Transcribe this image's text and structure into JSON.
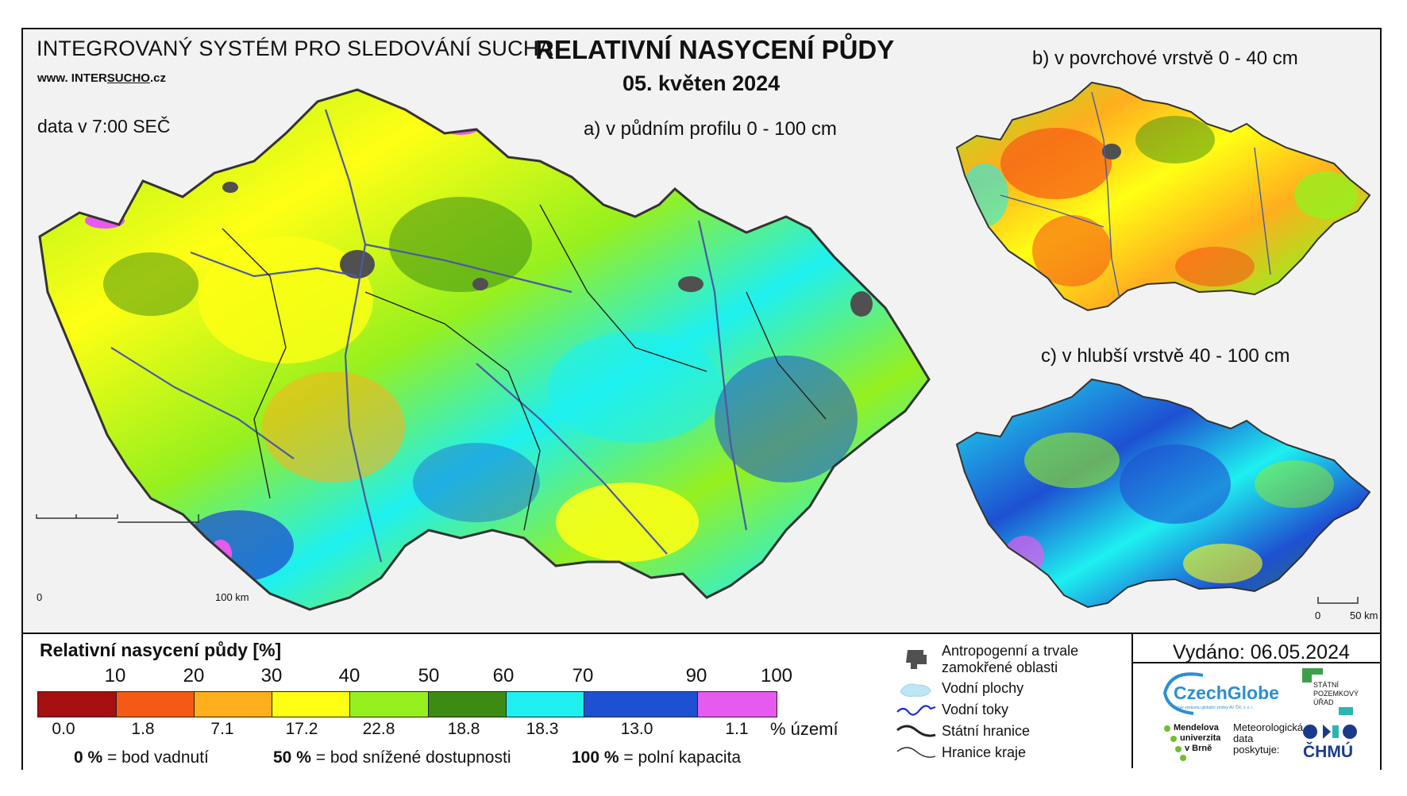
{
  "header": {
    "system_title": "INTEGROVANÝ SYSTÉM PRO SLEDOVÁNÍ SUCHA",
    "url_prefix": "www. INTER",
    "url_brand": "SUCHO",
    "url_suffix": ".cz",
    "data_time": "data v 7:00 SEČ",
    "main_title": "RELATIVNÍ NASYCENÍ PŮDY",
    "date": "05. květen 2024"
  },
  "maps": {
    "a_label": "a) v půdním profilu 0 - 100 cm",
    "b_label": "b) v povrchové vrstvě 0 - 40 cm",
    "c_label": "c) v hlubší vrstvě 40 - 100 cm",
    "scale_a": {
      "zero": "0",
      "end": "100 km"
    },
    "scale_c": {
      "zero": "0",
      "end": "50 km"
    }
  },
  "legend": {
    "title": "Relativní nasycení půdy [%]",
    "thresholds": [
      "10",
      "20",
      "30",
      "40",
      "50",
      "60",
      "70",
      "90",
      "100"
    ],
    "classes": [
      {
        "color": "#a50f0f",
        "area_pct": "0.0"
      },
      {
        "color": "#f55a14",
        "area_pct": "1.8"
      },
      {
        "color": "#ffae1e",
        "area_pct": "7.1"
      },
      {
        "color": "#ffff14",
        "area_pct": "17.2"
      },
      {
        "color": "#96f01e",
        "area_pct": "22.8"
      },
      {
        "color": "#3c8c14",
        "area_pct": "18.8"
      },
      {
        "color": "#1ef0f0",
        "area_pct": "18.3"
      },
      {
        "color": "#1e50d2",
        "area_pct": "13.0"
      },
      {
        "color": "#e65af0",
        "area_pct": "1.1"
      }
    ],
    "area_unit": "% území",
    "def_0_value": "0 %",
    "def_0_text": "= bod vadnutí",
    "def_50_value": "50 %",
    "def_50_text": "= bod snížené dostupnosti",
    "def_100_value": "100 %",
    "def_100_text": "= polní kapacita"
  },
  "symbols": {
    "anthropogenic_1": "Antropogenní a trvale",
    "anthropogenic_2": "zamokřené oblasti",
    "water_bodies": "Vodní plochy",
    "rivers": "Vodní toky",
    "state_border": "Státní hranice",
    "region_border": "Hranice kraje"
  },
  "issuer": {
    "issued": "Vydáno: 06.05.2024",
    "czechglobe": "CzechGlobe",
    "czechglobe_sub": "Ústav výzkumu globální změny AV ČR, v. v. i.",
    "spu": "STÁTNÍ POZEMKOVÝ ÚŘAD",
    "mendel_1": "Mendelova",
    "mendel_2": "univerzita",
    "mendel_3": "v Brně",
    "chmu_label_1": "Meteorologická",
    "chmu_label_2": "data",
    "chmu_label_3": "poskytuje:",
    "chmu": "ČHMÚ"
  }
}
